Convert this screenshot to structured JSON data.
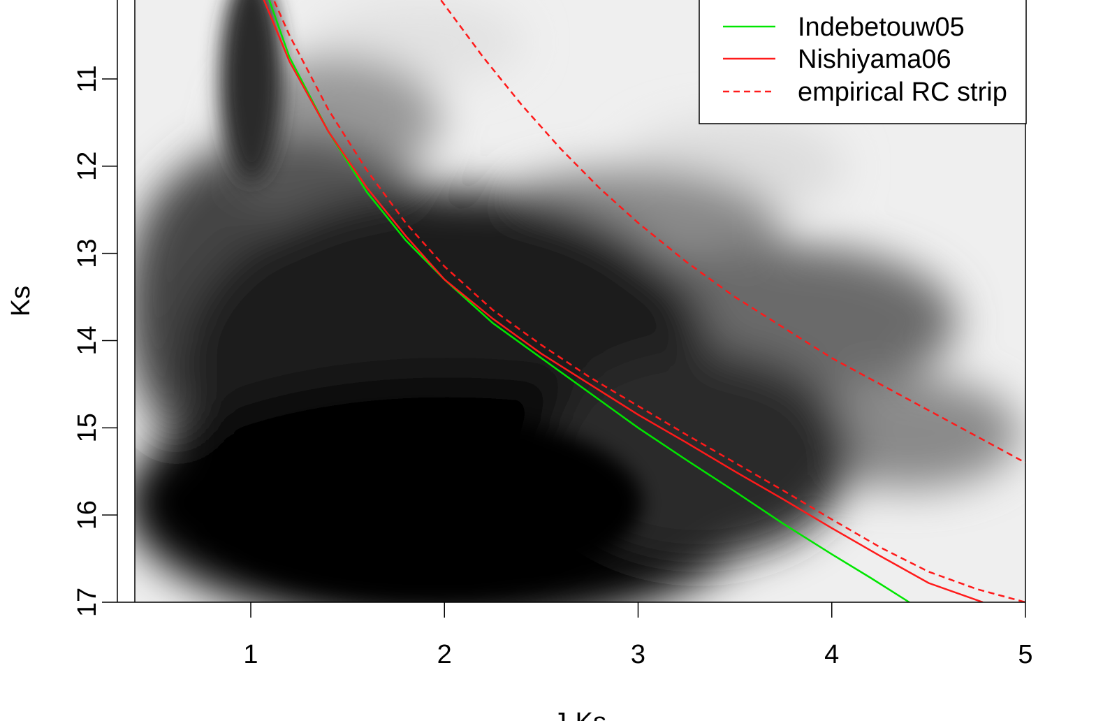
{
  "chart_data": {
    "type": "line",
    "title": "",
    "xlabel": "J-Ks",
    "ylabel": "Ks",
    "xlim": [
      0.4,
      5.0
    ],
    "ylim": [
      17.0,
      10.0
    ],
    "x_ticks": [
      1,
      2,
      3,
      4,
      5
    ],
    "y_ticks": [
      11,
      12,
      13,
      14,
      15,
      16,
      17
    ],
    "grid": false,
    "legend_position": "top-right",
    "background": "grayscale density map of stars (darker = higher density)",
    "series": [
      {
        "name": "Indebetouw05",
        "color": "#00e600",
        "style": "solid",
        "points": [
          [
            1.08,
            10.0
          ],
          [
            1.2,
            10.75
          ],
          [
            1.4,
            11.6
          ],
          [
            1.6,
            12.3
          ],
          [
            1.8,
            12.85
          ],
          [
            2.0,
            13.3
          ],
          [
            2.25,
            13.8
          ],
          [
            2.5,
            14.2
          ],
          [
            2.75,
            14.6
          ],
          [
            3.0,
            15.0
          ],
          [
            3.25,
            15.37
          ],
          [
            3.5,
            15.73
          ],
          [
            3.75,
            16.1
          ],
          [
            4.0,
            16.45
          ],
          [
            4.2,
            16.72
          ],
          [
            4.4,
            17.0
          ]
        ]
      },
      {
        "name": "Nishiyama06",
        "color": "#ff1a1a",
        "style": "solid",
        "points": [
          [
            1.05,
            10.0
          ],
          [
            1.2,
            10.8
          ],
          [
            1.4,
            11.6
          ],
          [
            1.6,
            12.25
          ],
          [
            1.8,
            12.8
          ],
          [
            2.0,
            13.3
          ],
          [
            2.25,
            13.75
          ],
          [
            2.5,
            14.15
          ],
          [
            2.75,
            14.5
          ],
          [
            3.0,
            14.85
          ],
          [
            3.25,
            15.17
          ],
          [
            3.5,
            15.5
          ],
          [
            3.75,
            15.82
          ],
          [
            4.0,
            16.15
          ],
          [
            4.25,
            16.47
          ],
          [
            4.5,
            16.78
          ],
          [
            4.78,
            17.0
          ]
        ]
      },
      {
        "name": "empirical RC strip",
        "color": "#ff1a1a",
        "style": "dashed",
        "points": [
          [
            1.1,
            10.0
          ],
          [
            1.2,
            10.5
          ],
          [
            1.4,
            11.35
          ],
          [
            1.6,
            12.05
          ],
          [
            1.8,
            12.65
          ],
          [
            2.0,
            13.15
          ],
          [
            2.25,
            13.65
          ],
          [
            2.5,
            14.05
          ],
          [
            2.75,
            14.42
          ],
          [
            3.0,
            14.75
          ],
          [
            3.25,
            15.08
          ],
          [
            3.5,
            15.4
          ],
          [
            3.75,
            15.72
          ],
          [
            4.0,
            16.05
          ],
          [
            4.25,
            16.37
          ],
          [
            4.5,
            16.65
          ],
          [
            4.75,
            16.85
          ],
          [
            5.0,
            17.0
          ]
        ]
      },
      {
        "name": "",
        "color": "#ff1a1a",
        "style": "dashed",
        "points": [
          [
            1.95,
            10.0
          ],
          [
            2.2,
            10.75
          ],
          [
            2.4,
            11.3
          ],
          [
            2.6,
            11.8
          ],
          [
            2.8,
            12.25
          ],
          [
            3.0,
            12.65
          ],
          [
            3.25,
            13.1
          ],
          [
            3.5,
            13.5
          ],
          [
            3.75,
            13.85
          ],
          [
            4.0,
            14.2
          ],
          [
            4.25,
            14.5
          ],
          [
            4.5,
            14.8
          ],
          [
            4.75,
            15.1
          ],
          [
            5.0,
            15.4
          ]
        ]
      }
    ]
  }
}
